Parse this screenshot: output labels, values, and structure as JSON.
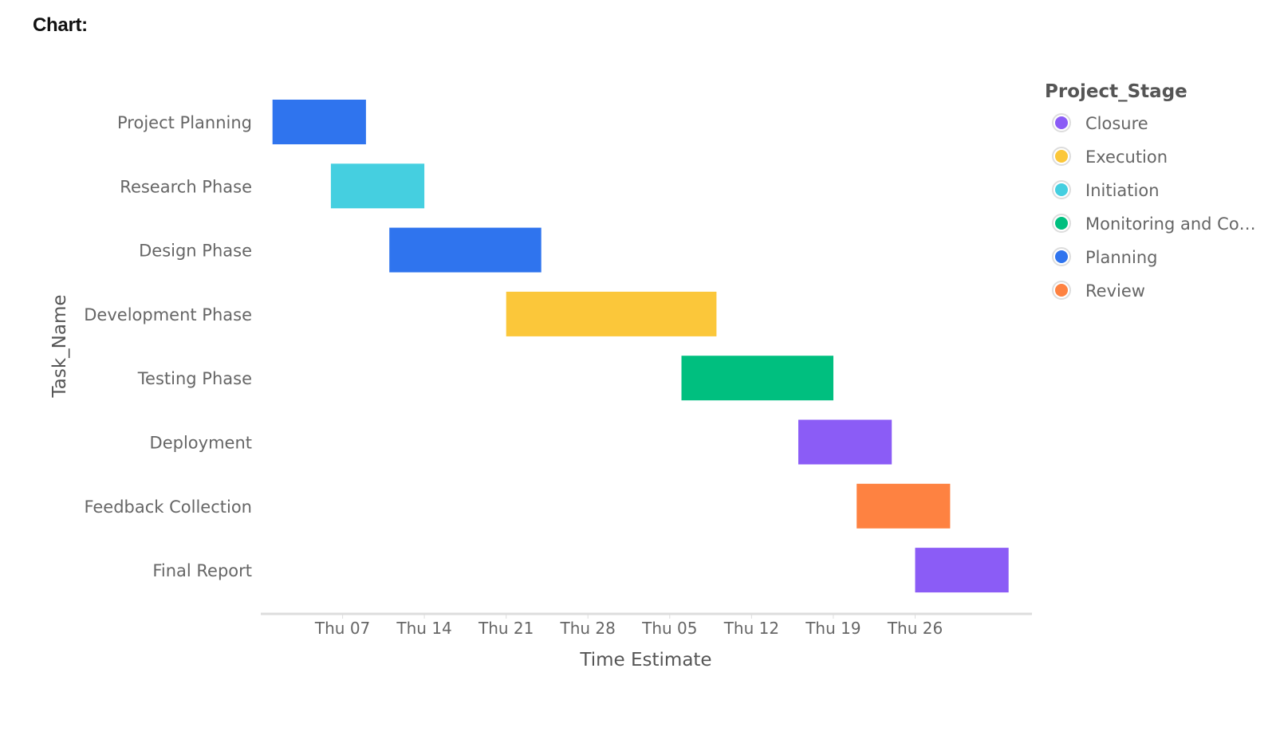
{
  "heading": "Chart:",
  "chart_data": {
    "type": "gantt",
    "xlabel": "Time Estimate",
    "ylabel": "Task_Name",
    "x_range": [
      "2023-08-31",
      "2023-11-05"
    ],
    "x_ticks": [
      {
        "date": "2023-09-07",
        "label": "Thu 07"
      },
      {
        "date": "2023-09-14",
        "label": "Thu 14"
      },
      {
        "date": "2023-09-21",
        "label": "Thu 21"
      },
      {
        "date": "2023-09-28",
        "label": "Thu 28"
      },
      {
        "date": "2023-10-05",
        "label": "Thu 05"
      },
      {
        "date": "2023-10-12",
        "label": "Thu 12"
      },
      {
        "date": "2023-10-19",
        "label": "Thu 19"
      },
      {
        "date": "2023-10-26",
        "label": "Thu 26"
      }
    ],
    "tasks": [
      {
        "name": "Project Planning",
        "start": "2023-09-01",
        "end": "2023-09-09",
        "stage": "Planning"
      },
      {
        "name": "Research Phase",
        "start": "2023-09-06",
        "end": "2023-09-14",
        "stage": "Initiation"
      },
      {
        "name": "Design Phase",
        "start": "2023-09-11",
        "end": "2023-09-24",
        "stage": "Planning"
      },
      {
        "name": "Development Phase",
        "start": "2023-09-21",
        "end": "2023-10-09",
        "stage": "Execution"
      },
      {
        "name": "Testing Phase",
        "start": "2023-10-06",
        "end": "2023-10-19",
        "stage": "Monitoring and Control"
      },
      {
        "name": "Deployment",
        "start": "2023-10-16",
        "end": "2023-10-24",
        "stage": "Closure"
      },
      {
        "name": "Feedback Collection",
        "start": "2023-10-21",
        "end": "2023-10-29",
        "stage": "Review"
      },
      {
        "name": "Final Report",
        "start": "2023-10-26",
        "end": "2023-11-03",
        "stage": "Closure"
      }
    ],
    "legend": {
      "title": "Project_Stage",
      "placement": "right",
      "items": [
        {
          "label": "Closure",
          "stage": "Closure",
          "color": "#8b5cf6"
        },
        {
          "label": "Execution",
          "stage": "Execution",
          "color": "#fbc73a"
        },
        {
          "label": "Initiation",
          "stage": "Initiation",
          "color": "#45cfe0"
        },
        {
          "label": "Monitoring and Co…",
          "stage": "Monitoring and Control",
          "color": "#00bf7f"
        },
        {
          "label": "Planning",
          "stage": "Planning",
          "color": "#2f74ee"
        },
        {
          "label": "Review",
          "stage": "Review",
          "color": "#fe8241"
        }
      ]
    }
  }
}
